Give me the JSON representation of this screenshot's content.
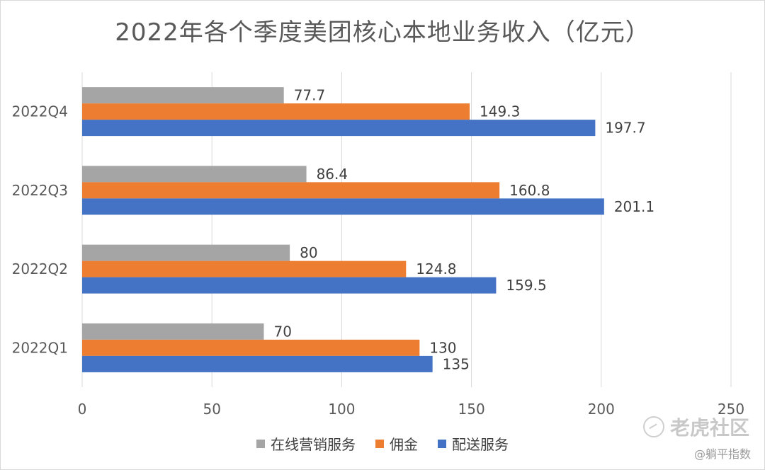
{
  "chart_data": {
    "type": "bar",
    "orientation": "horizontal",
    "title": "2022年各个季度美团核心本地业务收入（亿元）",
    "categories": [
      "2022Q1",
      "2022Q2",
      "2022Q3",
      "2022Q4"
    ],
    "series": [
      {
        "name": "在线营销服务",
        "color": "#a5a5a5",
        "values": [
          70,
          80,
          86.4,
          77.7
        ]
      },
      {
        "name": "佣金",
        "color": "#ed7d31",
        "values": [
          130,
          124.8,
          160.8,
          149.3
        ]
      },
      {
        "name": "配送服务",
        "color": "#4472c4",
        "values": [
          135,
          159.5,
          201.1,
          197.7
        ]
      }
    ],
    "xlim": [
      0,
      250
    ],
    "xticks": [
      0,
      50,
      100,
      150,
      200,
      250
    ],
    "grid": "vertical",
    "legend": "bottom",
    "data_labels": true
  },
  "watermark": {
    "brand": "老虎社区",
    "handle": "@躺平指数"
  }
}
